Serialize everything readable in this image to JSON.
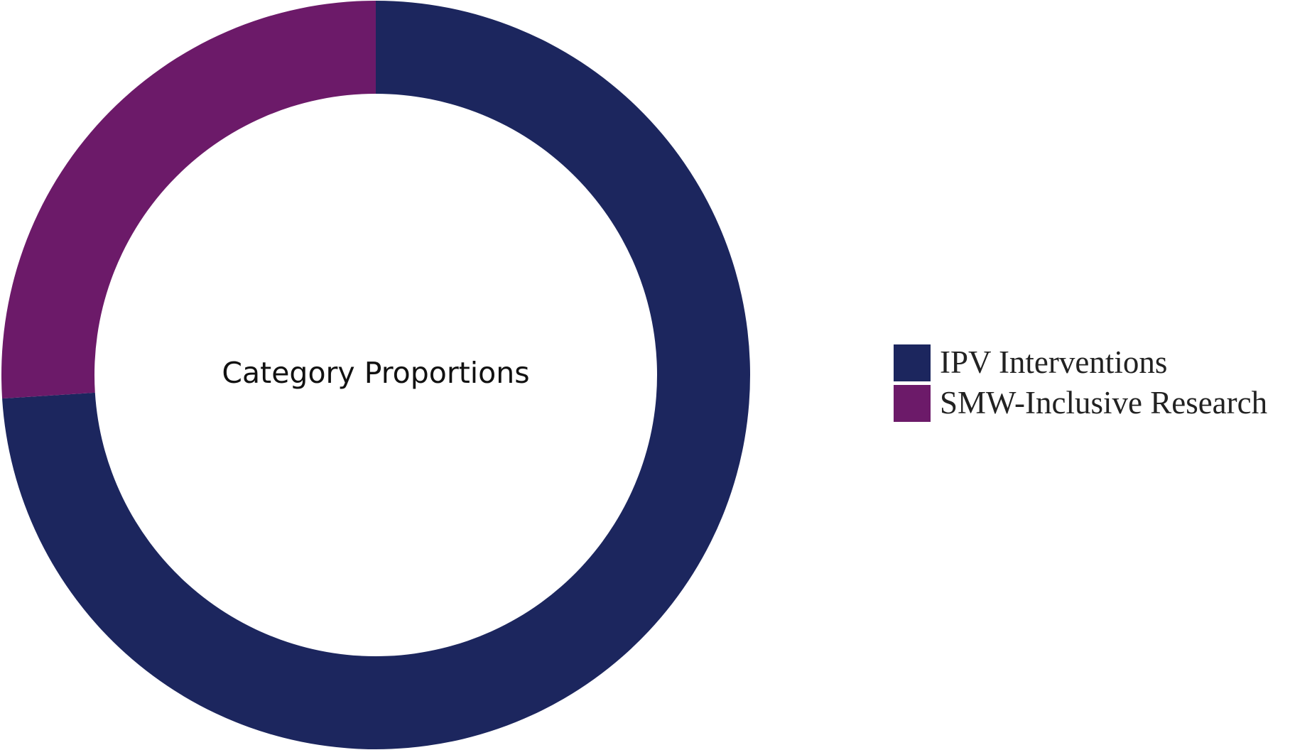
{
  "chart_data": {
    "type": "pie",
    "variant": "donut",
    "center_text": "Category Proportions",
    "categories": [
      "IPV Interventions",
      "SMW-Inclusive Research"
    ],
    "values": [
      74,
      26
    ],
    "colors": [
      "#1c265e",
      "#6c1a69"
    ],
    "start_angle_deg": 0,
    "direction": "clockwise",
    "legend": {
      "position": "right",
      "entries": [
        "IPV Interventions",
        "SMW-Inclusive Research"
      ]
    }
  }
}
